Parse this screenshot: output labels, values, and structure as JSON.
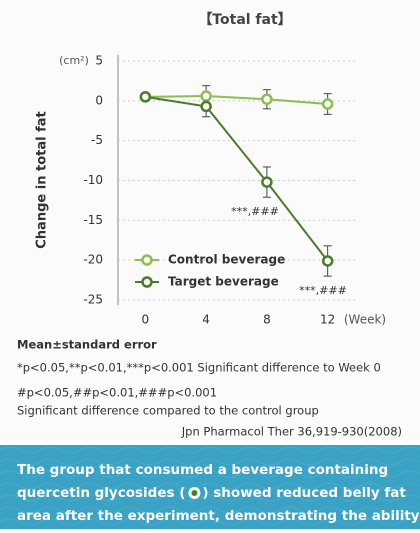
{
  "chart_data": {
    "type": "line",
    "title": "【Total fat】",
    "y_unit": "(cm²)",
    "ylabel": "Change in total fat",
    "x_unit": "(Week)",
    "x": [
      0,
      4,
      8,
      12
    ],
    "xlim": [
      -1.8,
      13.8
    ],
    "xticks": [
      0,
      4,
      8,
      12
    ],
    "ylim": [
      -25,
      5
    ],
    "yticks": [
      5,
      0,
      -5,
      -10,
      -15,
      -20,
      -25
    ],
    "grid": true,
    "series": [
      {
        "name": "Control beverage",
        "color": "#8cbd55",
        "values": [
          0.5,
          0.6,
          0.2,
          -0.4
        ],
        "errors": [
          0,
          1.3,
          1.2,
          1.3
        ]
      },
      {
        "name": "Target beverage",
        "color": "#4b7b2b",
        "values": [
          0.5,
          -0.7,
          -10.2,
          -20.1
        ],
        "errors": [
          0,
          1.3,
          1.9,
          1.9
        ]
      }
    ],
    "annotations": [
      "***,###",
      "***,###"
    ]
  },
  "notes": [
    "Mean±standard error",
    "*p<0.05,**p<0.01,***p<0.001   Significant difference to Week 0",
    "#p<0.05,##p<0.01,###p<0.001",
    "Significant difference compared to the control group"
  ],
  "source": "Jpn Pharmacol Ther 36,919-930(2008)",
  "footer": [
    "The group that consumed a beverage containing",
    "quercetin glycosides (",
    ") showed reduced belly fat",
    "area after the experiment, demonstrating the ability"
  ]
}
